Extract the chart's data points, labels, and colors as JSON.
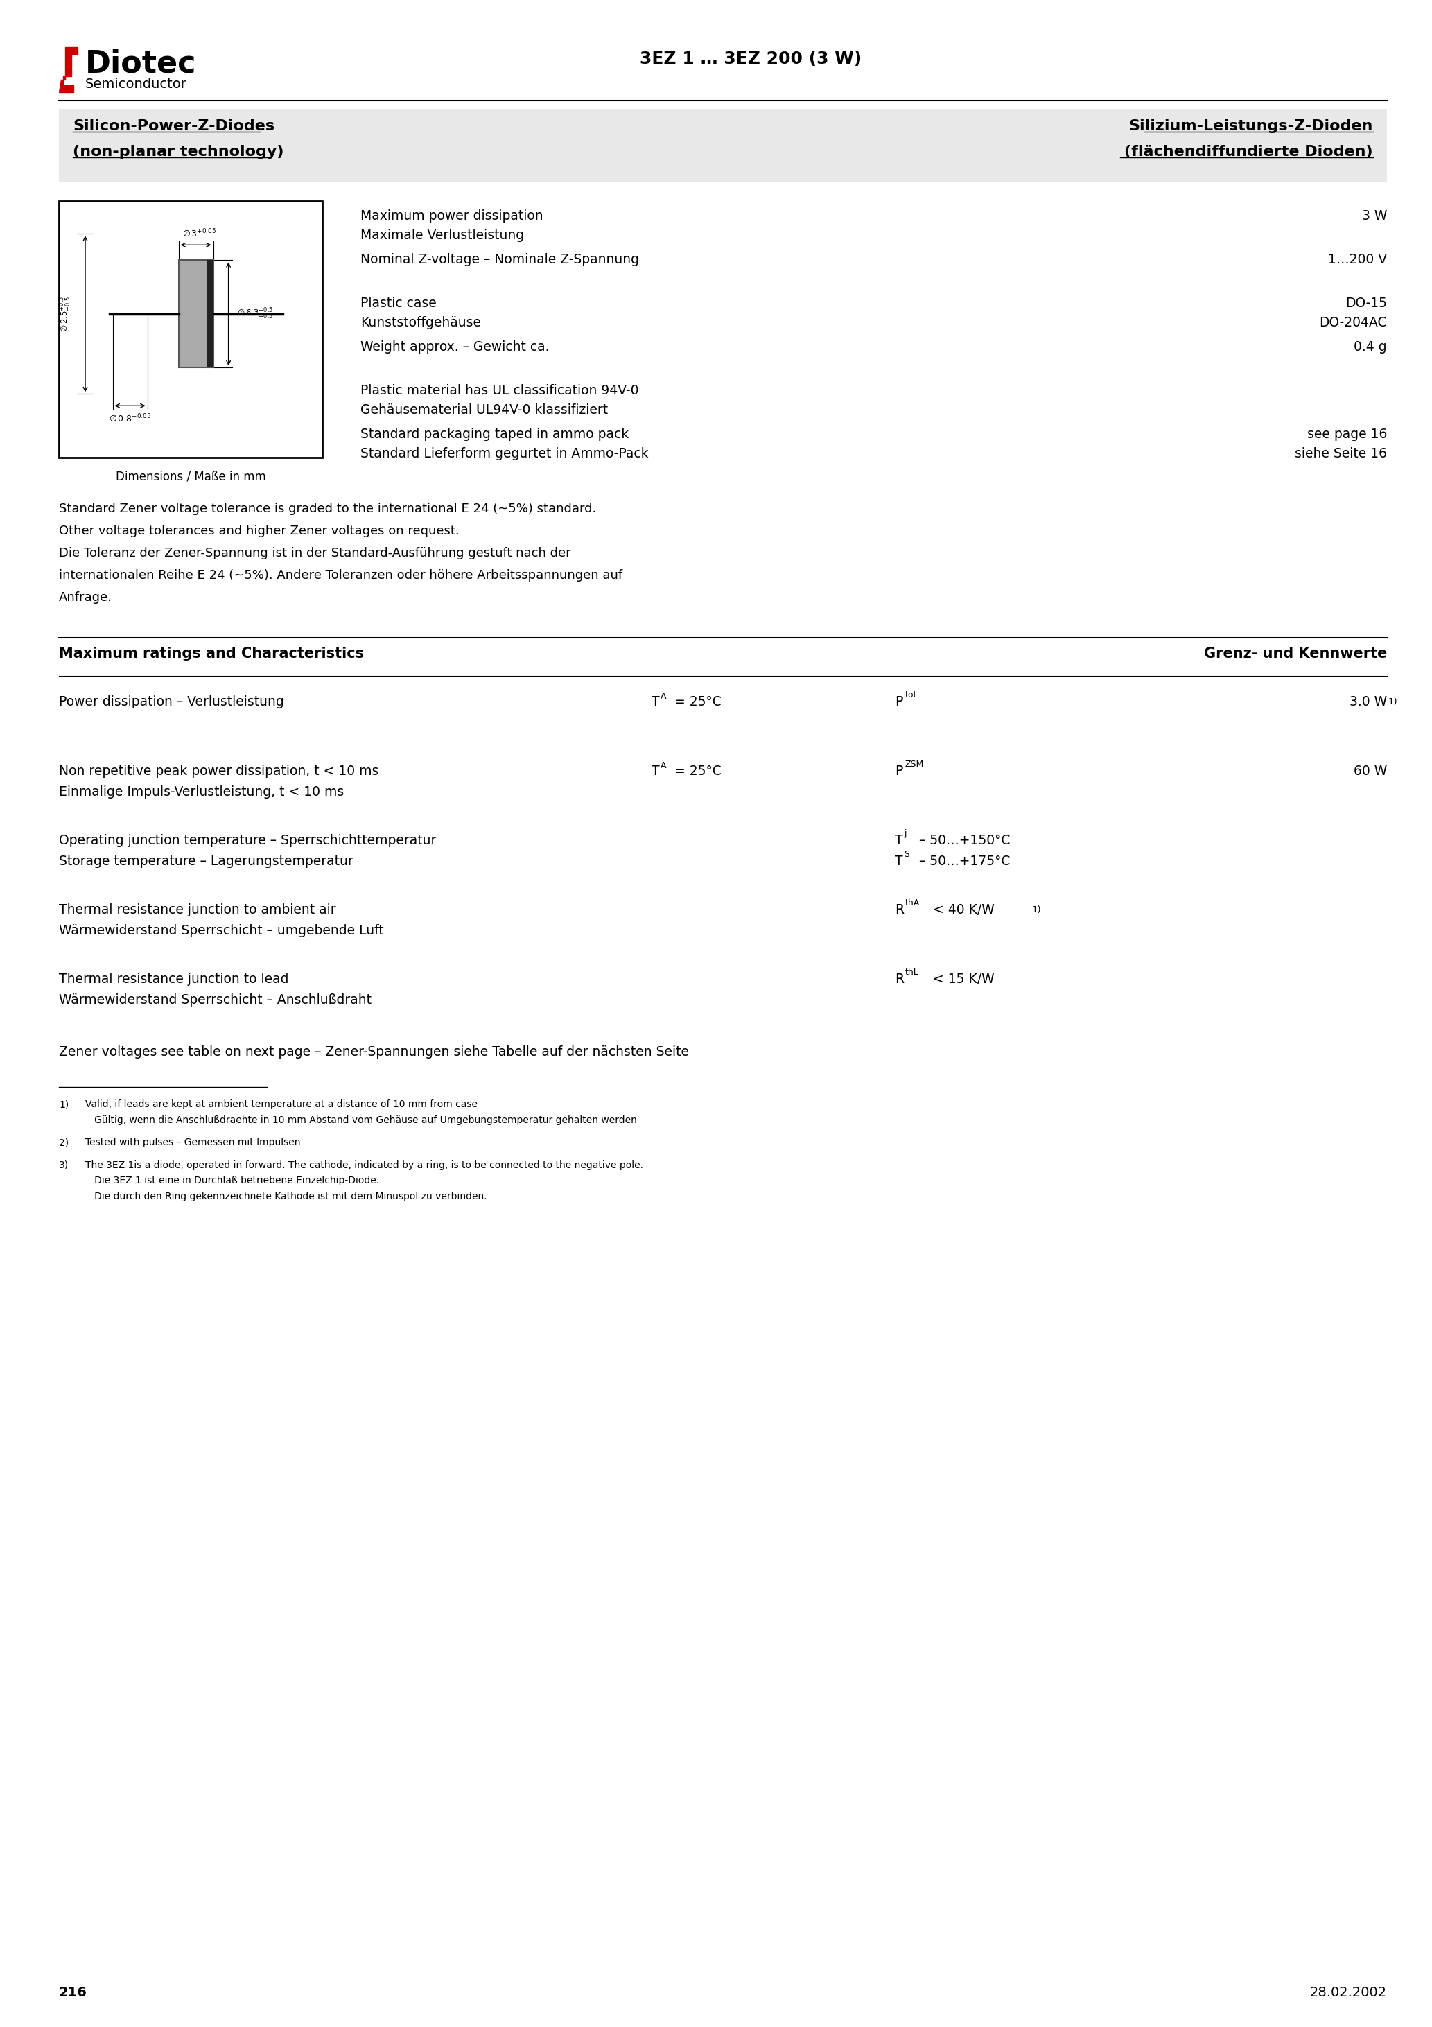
{
  "page_width": 20.66,
  "page_height": 29.24,
  "bg_color": "#ffffff",
  "logo_text_diotec": "Diotec",
  "logo_text_semi": "Semiconductor",
  "header_title": "3EZ 1 … 3EZ 200 (3 W)",
  "subtitle_left_line1": "Silicon-Power-Z-Diodes",
  "subtitle_left_line2": "(non-planar technology)",
  "subtitle_right_line1": "Silizium-Leistungs-Z-Dioden",
  "subtitle_right_line2": "(flächendiffundierte Dioden)",
  "subtitle_bg": "#e8e8e8",
  "specs": [
    {
      "label": "Maximum power dissipation\nMaximale Verlustleistung",
      "value": "3 W"
    },
    {
      "label": "Nominal Z-voltage – Nominale Z-Spannung",
      "value": "1…200 V"
    },
    {
      "label": "Plastic case\nKunststoffgehäuse",
      "value": "DO-15\nDO-204AC"
    },
    {
      "label": "Weight approx. – Gewicht ca.",
      "value": "0.4 g"
    },
    {
      "label": "Plastic material has UL classification 94V-0\nGehäusematerial UL94V-0 klassifiziert",
      "value": ""
    },
    {
      "label": "Standard packaging taped in ammo pack\nStandard Lieferform gegurtet in Ammo-Pack",
      "value": "see page 16\nsiehe Seite 16"
    }
  ],
  "dimensions_caption": "Dimensions / Maße in mm",
  "paragraph_text": "Standard Zener voltage tolerance is graded to the international E 24 (~5%) standard.\nOther voltage tolerances and higher Zener voltages on request.\nDie Toleranz der Zener-Spannung ist in der Standard-Ausführung gestuft nach der\ninternationalen Reihe E 24 (~5%). Andere Toleranzen oder höhere Arbeitsspannungen auf\nAnfrage.",
  "section_title_left": "Maximum ratings and Characteristics",
  "section_title_right": "Grenz- und Kennwerte",
  "zener_note": "Zener voltages see table on next page – Zener-Spannungen siehe Tabelle auf der nächsten Seite",
  "page_number": "216",
  "page_date": "28.02.2002"
}
